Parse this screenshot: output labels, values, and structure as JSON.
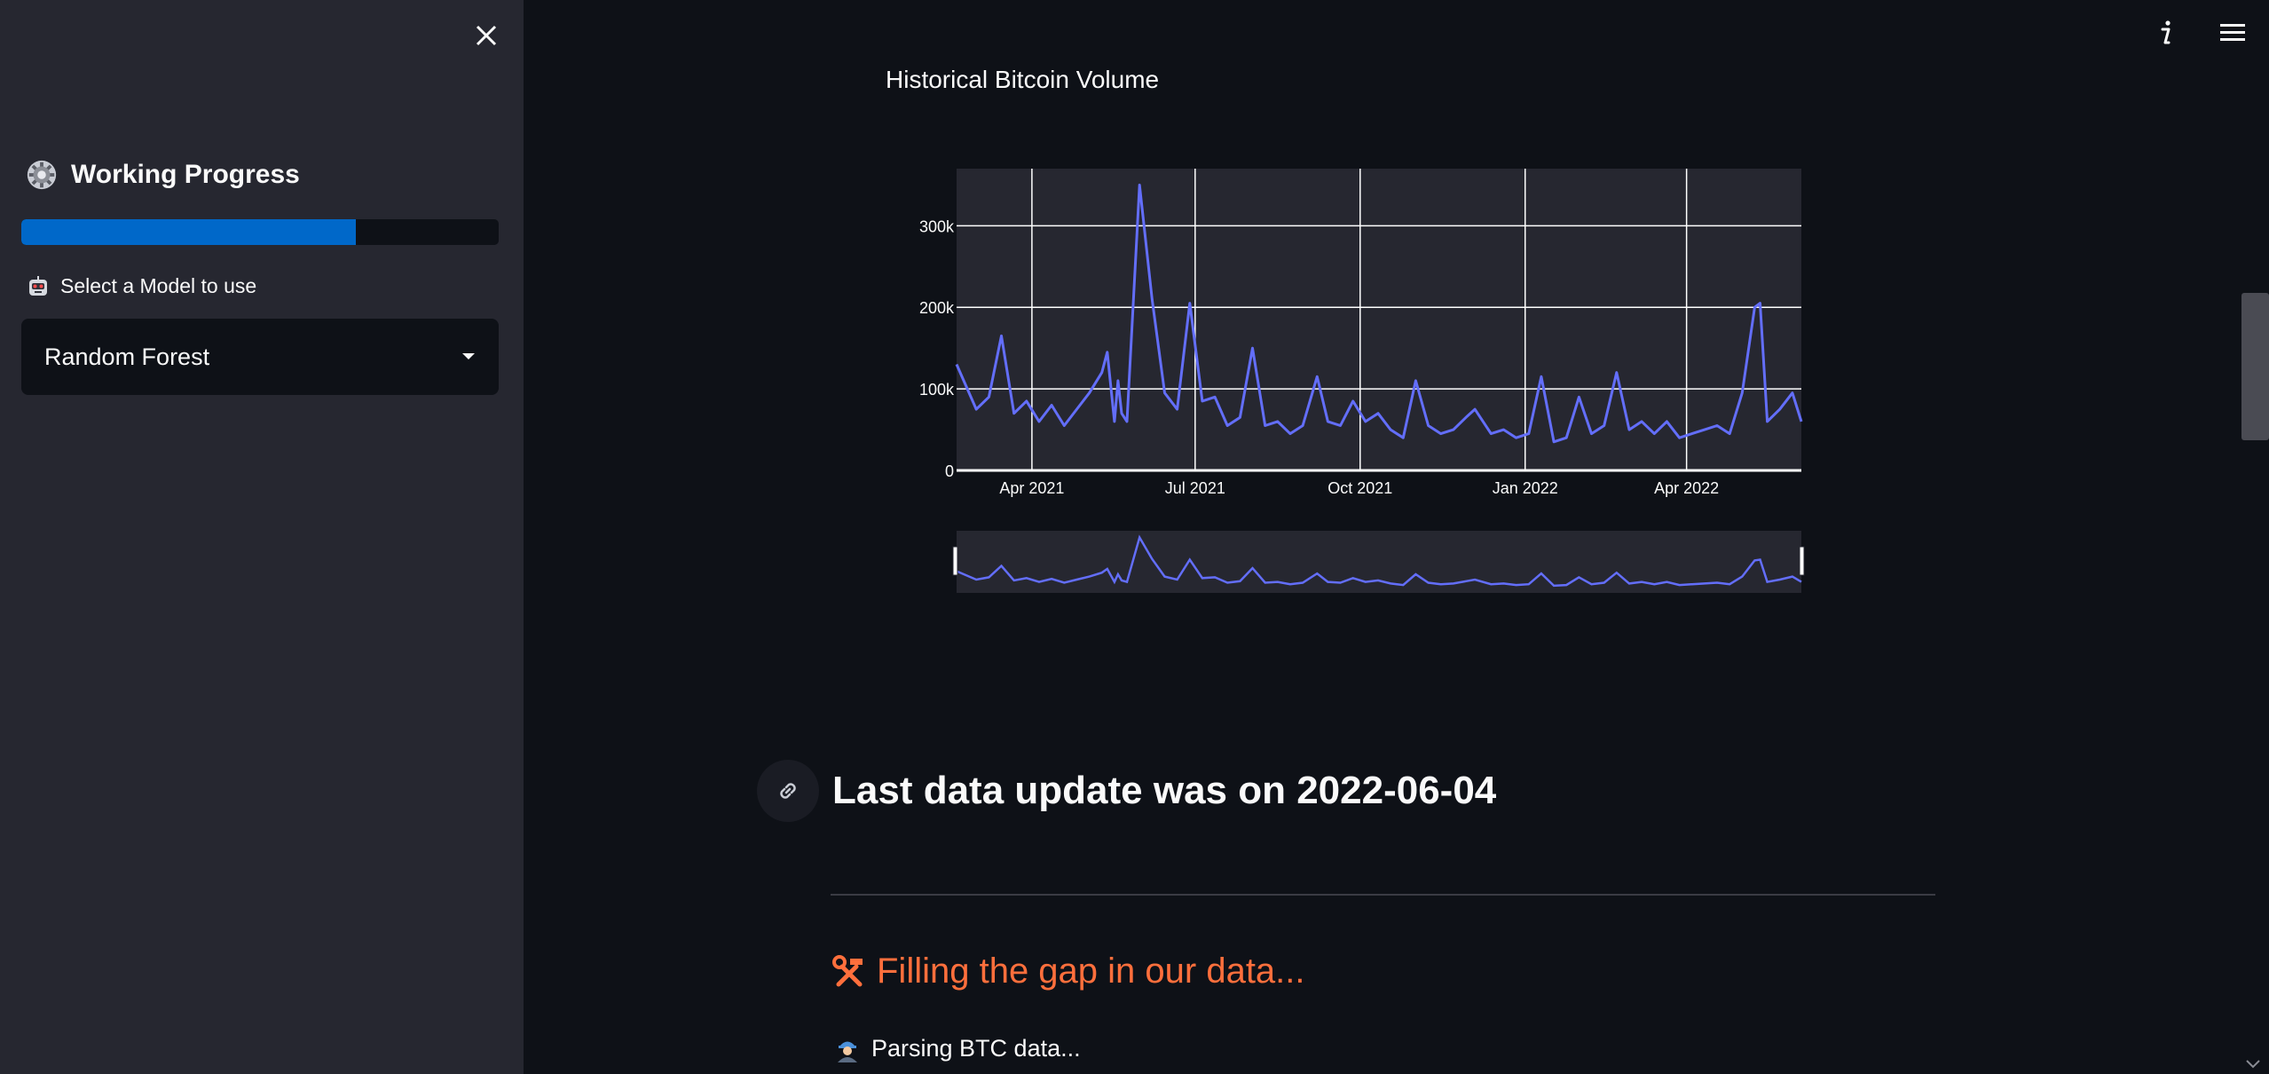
{
  "sidebar": {
    "progress_title": "Working Progress",
    "progress_fraction": 0.7,
    "model_label": "Select a Model to use",
    "model_selected": "Random Forest"
  },
  "main": {
    "chart_title": "Historical Bitcoin Volume",
    "update_heading": "Last data update was on 2022-06-04",
    "gap_heading": "Filling the gap in our data...",
    "status_text": "Parsing BTC data..."
  },
  "colors": {
    "sidebar_bg": "#262730",
    "main_bg": "#0e1117",
    "accent_blue": "#0068c9",
    "series": "#636efa",
    "warning_orange": "#ff6f3c"
  },
  "icons": {
    "close": "close-icon",
    "gear": "gear-icon",
    "robot": "robot-icon",
    "dropdown": "caret-down-icon",
    "info": "info-icon",
    "menu": "hamburger-menu-icon",
    "link": "link-icon",
    "tools": "hammer-wrench-icon",
    "worker": "worker-icon"
  },
  "chart_data": {
    "type": "line",
    "title": "Historical Bitcoin Volume",
    "xlabel": "",
    "ylabel": "",
    "x_ticks": [
      "Apr 2021",
      "Jul 2021",
      "Oct 2021",
      "Jan 2022",
      "Apr 2022"
    ],
    "y_ticks": [
      "0",
      "100k",
      "200k",
      "300k"
    ],
    "ylim": [
      0,
      370000
    ],
    "xlim": [
      "2021-02-18",
      "2022-06-04"
    ],
    "grid": true,
    "range_slider": true,
    "series": [
      {
        "x": [
          "2021-02-18",
          "2021-03-01",
          "2021-03-08",
          "2021-03-15",
          "2021-03-22",
          "2021-03-29",
          "2021-04-05",
          "2021-04-12",
          "2021-04-19",
          "2021-04-26",
          "2021-05-03",
          "2021-05-10",
          "2021-05-13",
          "2021-05-17",
          "2021-05-19",
          "2021-05-21",
          "2021-05-24",
          "2021-05-31",
          "2021-06-07",
          "2021-06-14",
          "2021-06-21",
          "2021-06-28",
          "2021-07-05",
          "2021-07-12",
          "2021-07-19",
          "2021-07-26",
          "2021-08-02",
          "2021-08-09",
          "2021-08-16",
          "2021-08-23",
          "2021-08-30",
          "2021-09-07",
          "2021-09-13",
          "2021-09-20",
          "2021-09-27",
          "2021-10-04",
          "2021-10-11",
          "2021-10-18",
          "2021-10-25",
          "2021-11-01",
          "2021-11-08",
          "2021-11-15",
          "2021-11-22",
          "2021-11-29",
          "2021-12-04",
          "2021-12-13",
          "2021-12-20",
          "2021-12-27",
          "2022-01-03",
          "2022-01-10",
          "2022-01-17",
          "2022-01-24",
          "2022-01-31",
          "2022-02-07",
          "2022-02-14",
          "2022-02-21",
          "2022-02-28",
          "2022-03-07",
          "2022-03-14",
          "2022-03-21",
          "2022-03-28",
          "2022-04-04",
          "2022-04-11",
          "2022-04-18",
          "2022-04-25",
          "2022-05-02",
          "2022-05-09",
          "2022-05-12",
          "2022-05-16",
          "2022-05-23",
          "2022-05-30",
          "2022-06-04"
        ],
        "y": [
          130000,
          75000,
          90000,
          165000,
          70000,
          85000,
          60000,
          80000,
          55000,
          75000,
          95000,
          120000,
          145000,
          60000,
          110000,
          70000,
          60000,
          350000,
          210000,
          95000,
          75000,
          205000,
          85000,
          90000,
          55000,
          65000,
          150000,
          55000,
          60000,
          45000,
          55000,
          115000,
          60000,
          55000,
          85000,
          60000,
          70000,
          50000,
          40000,
          110000,
          55000,
          45000,
          50000,
          65000,
          75000,
          45000,
          50000,
          40000,
          45000,
          115000,
          35000,
          40000,
          90000,
          45000,
          55000,
          120000,
          50000,
          60000,
          45000,
          60000,
          40000,
          45000,
          50000,
          55000,
          45000,
          95000,
          200000,
          205000,
          60000,
          75000,
          95000,
          60000
        ]
      }
    ]
  }
}
